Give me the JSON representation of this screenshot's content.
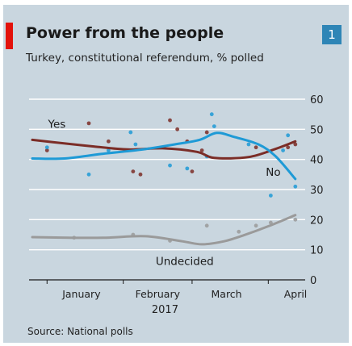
{
  "header": {
    "title": "Power from the people",
    "subtitle": "Turkey, constitutional referendum, % polled",
    "badge": "1"
  },
  "source": "Source: National polls",
  "colors": {
    "background": "#c9d6df",
    "accent_red": "#e3120b",
    "yes": "#7b2d27",
    "no": "#1e9ad6",
    "undecided": "#9a9a9a",
    "badge": "#2e85b6"
  },
  "chart_data": {
    "type": "line",
    "title": "Power from the people",
    "subtitle": "Turkey, constitutional referendum, % polled",
    "year_label": "2017",
    "x_ticks": [
      "January",
      "February",
      "March",
      "April"
    ],
    "x_tick_dates": [
      "2017-01-01",
      "2017-02-01",
      "2017-03-01",
      "2017-04-01"
    ],
    "xlim": [
      "2016-12-26",
      "2017-04-16"
    ],
    "ylim": [
      0,
      60
    ],
    "y_ticks": [
      "0",
      "10",
      "20",
      "30",
      "40",
      "50",
      "60"
    ],
    "y_axis_side": "right",
    "grid": true,
    "source": "Source: National polls",
    "series": [
      {
        "name": "Yes",
        "color": "#7b2d27",
        "line": [
          {
            "x": "2016-12-26",
            "y": 46.5
          },
          {
            "x": "2017-01-06",
            "y": 45.5
          },
          {
            "x": "2017-01-20",
            "y": 44.3
          },
          {
            "x": "2017-02-03",
            "y": 43.3
          },
          {
            "x": "2017-02-17",
            "y": 43.7
          },
          {
            "x": "2017-03-03",
            "y": 42.5
          },
          {
            "x": "2017-03-10",
            "y": 40.5
          },
          {
            "x": "2017-03-24",
            "y": 40.8
          },
          {
            "x": "2017-04-04",
            "y": 43.5
          },
          {
            "x": "2017-04-12",
            "y": 46.0
          }
        ],
        "points": [
          {
            "x": "2017-01-01",
            "y": 43
          },
          {
            "x": "2017-01-18",
            "y": 52
          },
          {
            "x": "2017-01-26",
            "y": 46
          },
          {
            "x": "2017-02-05",
            "y": 36
          },
          {
            "x": "2017-02-08",
            "y": 35
          },
          {
            "x": "2017-02-20",
            "y": 53
          },
          {
            "x": "2017-02-23",
            "y": 50
          },
          {
            "x": "2017-02-27",
            "y": 46
          },
          {
            "x": "2017-03-01",
            "y": 36
          },
          {
            "x": "2017-03-05",
            "y": 43
          },
          {
            "x": "2017-03-07",
            "y": 49
          },
          {
            "x": "2017-03-27",
            "y": 44
          },
          {
            "x": "2017-04-09",
            "y": 44
          },
          {
            "x": "2017-04-12",
            "y": 45
          }
        ]
      },
      {
        "name": "No",
        "color": "#1e9ad6",
        "line": [
          {
            "x": "2016-12-26",
            "y": 40.3
          },
          {
            "x": "2017-01-08",
            "y": 40.3
          },
          {
            "x": "2017-01-23",
            "y": 41.8
          },
          {
            "x": "2017-02-08",
            "y": 43.2
          },
          {
            "x": "2017-02-22",
            "y": 45.0
          },
          {
            "x": "2017-03-04",
            "y": 46.5
          },
          {
            "x": "2017-03-11",
            "y": 48.8
          },
          {
            "x": "2017-03-18",
            "y": 47.5
          },
          {
            "x": "2017-03-28",
            "y": 45.0
          },
          {
            "x": "2017-04-04",
            "y": 41.0
          },
          {
            "x": "2017-04-12",
            "y": 33.5
          }
        ],
        "points": [
          {
            "x": "2017-01-01",
            "y": 44
          },
          {
            "x": "2017-01-18",
            "y": 35
          },
          {
            "x": "2017-01-26",
            "y": 43
          },
          {
            "x": "2017-02-04",
            "y": 49
          },
          {
            "x": "2017-02-06",
            "y": 45
          },
          {
            "x": "2017-02-20",
            "y": 38
          },
          {
            "x": "2017-02-27",
            "y": 37
          },
          {
            "x": "2017-03-07",
            "y": 41
          },
          {
            "x": "2017-03-09",
            "y": 55
          },
          {
            "x": "2017-03-10",
            "y": 51
          },
          {
            "x": "2017-03-24",
            "y": 45
          },
          {
            "x": "2017-04-02",
            "y": 28
          },
          {
            "x": "2017-04-07",
            "y": 43
          },
          {
            "x": "2017-04-09",
            "y": 48
          },
          {
            "x": "2017-04-12",
            "y": 31
          }
        ]
      },
      {
        "name": "Undecided",
        "color": "#9a9a9a",
        "line": [
          {
            "x": "2016-12-26",
            "y": 14.2
          },
          {
            "x": "2017-01-10",
            "y": 14.0
          },
          {
            "x": "2017-01-25",
            "y": 14.0
          },
          {
            "x": "2017-02-10",
            "y": 14.5
          },
          {
            "x": "2017-02-25",
            "y": 12.8
          },
          {
            "x": "2017-03-05",
            "y": 11.8
          },
          {
            "x": "2017-03-14",
            "y": 12.8
          },
          {
            "x": "2017-03-22",
            "y": 14.8
          },
          {
            "x": "2017-04-01",
            "y": 17.8
          },
          {
            "x": "2017-04-12",
            "y": 21.5
          }
        ],
        "points": [
          {
            "x": "2017-01-12",
            "y": 14
          },
          {
            "x": "2017-02-05",
            "y": 15
          },
          {
            "x": "2017-02-20",
            "y": 13
          },
          {
            "x": "2017-03-07",
            "y": 18
          },
          {
            "x": "2017-03-20",
            "y": 16
          },
          {
            "x": "2017-03-27",
            "y": 18
          },
          {
            "x": "2017-04-02",
            "y": 19
          },
          {
            "x": "2017-04-12",
            "y": 20
          }
        ]
      }
    ]
  }
}
